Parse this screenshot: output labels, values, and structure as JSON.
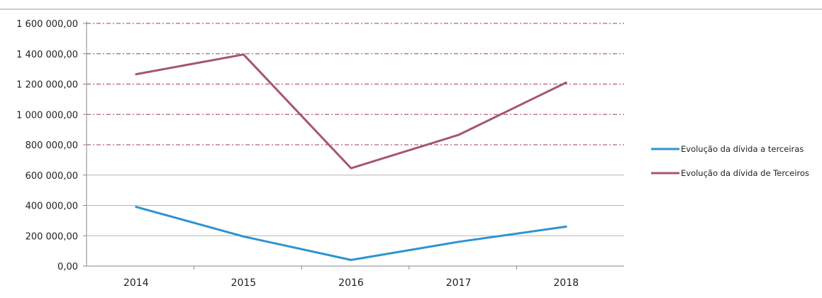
{
  "chart_data": {
    "type": "line",
    "categories": [
      "2014",
      "2015",
      "2016",
      "2017",
      "2018"
    ],
    "y_ticks": [
      "0,00",
      "200 000,00",
      "400 000,00",
      "600 000,00",
      "800 000,00",
      "1 000 000,00",
      "1 200 000,00",
      "1 400 000,00",
      "1 600 000,00"
    ],
    "ylim": [
      0,
      1600000
    ],
    "grid": true,
    "legend_position": "right",
    "series": [
      {
        "name": "Evolução da dívida a terceiras",
        "color": "#2e93d1",
        "values": [
          390000,
          195000,
          40000,
          160000,
          260000
        ]
      },
      {
        "name": "Evolução da dívida de Terceiros",
        "color": "#a5566d",
        "values": [
          1265000,
          1395000,
          645000,
          865000,
          1210000
        ]
      }
    ]
  }
}
